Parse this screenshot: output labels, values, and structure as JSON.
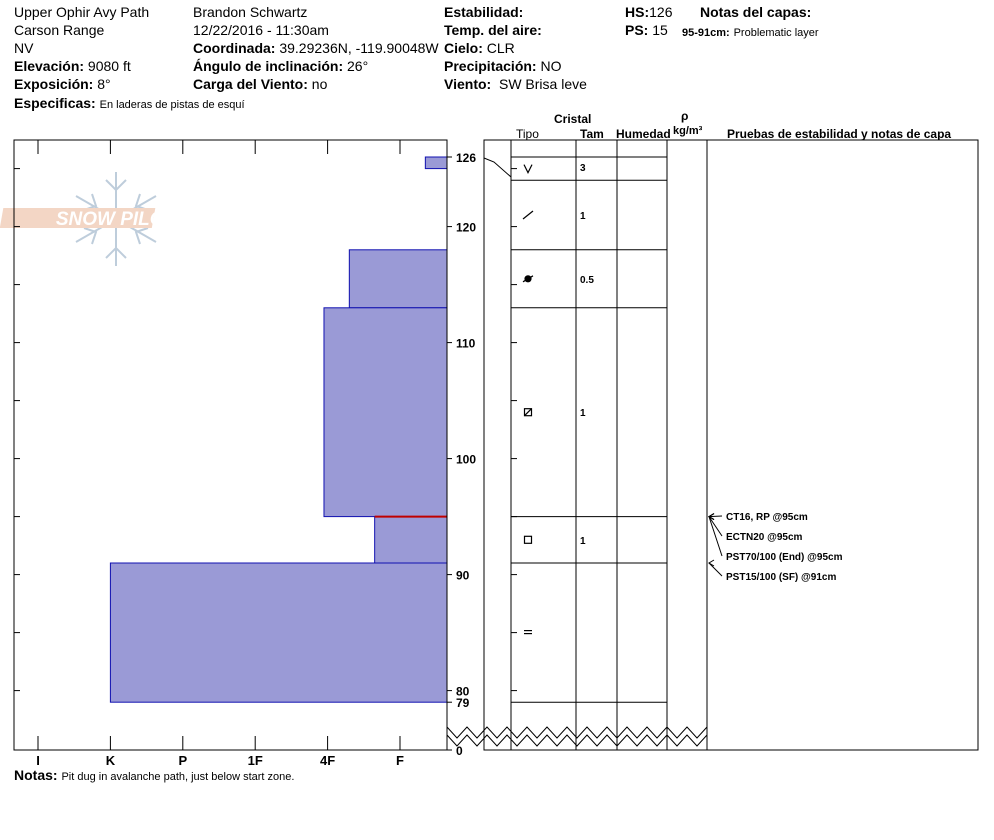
{
  "header": {
    "location": "Upper Ophir Avy Path",
    "range": "Carson Range",
    "state": "NV",
    "elevation_label": "Elevación:",
    "elevation_value": "9080 ft",
    "aspect_label": "Exposición:",
    "aspect_value": "8°",
    "specifics_label": "Especificas:",
    "specifics_value": "En laderas de pistas de esquí",
    "observer": "Brandon Schwartz",
    "datetime": "12/22/2016 - 11:30am",
    "coord_label": "Coordinada:",
    "coord_value": "39.29236N, -119.90048W",
    "incline_label": "Ángulo de inclinación:",
    "incline_value": "26°",
    "wind_load_label": "Carga del Viento:",
    "wind_load_value": "no",
    "stability_label": "Estabilidad:",
    "air_temp_label": "Temp. del aire:",
    "sky_label": "Cielo:",
    "sky_value": "CLR",
    "precip_label": "Precipitación:",
    "precip_value": "NO",
    "wind_label": "Viento:",
    "wind_value": "SW Brisa leve",
    "hs_label": "HS:",
    "hs_value": "126",
    "ps_label": "PS:",
    "ps_value": "15",
    "layer_notes_label": "Notas del capas:",
    "layer_note_range": "95-91cm:",
    "layer_note_text": "Problematic layer"
  },
  "logo_text": "SNOW PILOT",
  "columns": {
    "crystal": "Cristal",
    "type": "Tipo",
    "size": "Tam",
    "moisture": "Humedad",
    "density_symbol": "ρ",
    "density_unit": "kg/m³",
    "tests": "Pruebas de estabilidad y notas de capa"
  },
  "notes_label": "Notas:",
  "notes_value": "Pit dug in avalanche path, just below start zone.",
  "chart_data": {
    "type": "bar",
    "description_axis_y": "height in cm",
    "hardness_ticks": [
      "I",
      "K",
      "P",
      "1F",
      "4F",
      "F"
    ],
    "hardness_tick_index": {
      "I": 1,
      "K": 2,
      "P": 3,
      "1F": 4,
      "4F": 5,
      "F": 6
    },
    "height_ticks": [
      126,
      120,
      110,
      100,
      90,
      80,
      79,
      0
    ],
    "ylim": [
      79,
      127
    ],
    "layers": [
      {
        "top": 126,
        "bottom": 125,
        "hardness": 6.35
      },
      {
        "top": 125,
        "bottom": 118,
        "hardness": 6.65
      },
      {
        "top": 118,
        "bottom": 113,
        "hardness": 5.3
      },
      {
        "top": 113,
        "bottom": 95,
        "hardness": 4.95
      },
      {
        "top": 95,
        "bottom": 91,
        "hardness": 5.65
      },
      {
        "top": 91,
        "bottom": 79,
        "hardness": 2
      }
    ],
    "problem_layer_height": 95,
    "crystal_rows": [
      {
        "top": 126,
        "bottom": 124,
        "symbol": "new-snow",
        "size": "3"
      },
      {
        "top": 124,
        "bottom": 118,
        "symbol": "decomposing",
        "size": "1"
      },
      {
        "top": 118,
        "bottom": 113,
        "symbol": "surface-hoar-rounds",
        "size": "0.5"
      },
      {
        "top": 113,
        "bottom": 95,
        "symbol": "faceted-rounded",
        "size": "1"
      },
      {
        "top": 95,
        "bottom": 91,
        "symbol": "faceted",
        "size": "1"
      },
      {
        "top": 91,
        "bottom": 79,
        "symbol": "melt-freeze",
        "size": ""
      }
    ],
    "tests": [
      {
        "text": "CT16, RP @95cm",
        "height": 95
      },
      {
        "text": "ECTN20 @95cm",
        "height": 95
      },
      {
        "text": "PST70/100 (End) @95cm",
        "height": 95
      },
      {
        "text": "PST15/100 (SF) @91cm",
        "height": 91
      }
    ]
  }
}
